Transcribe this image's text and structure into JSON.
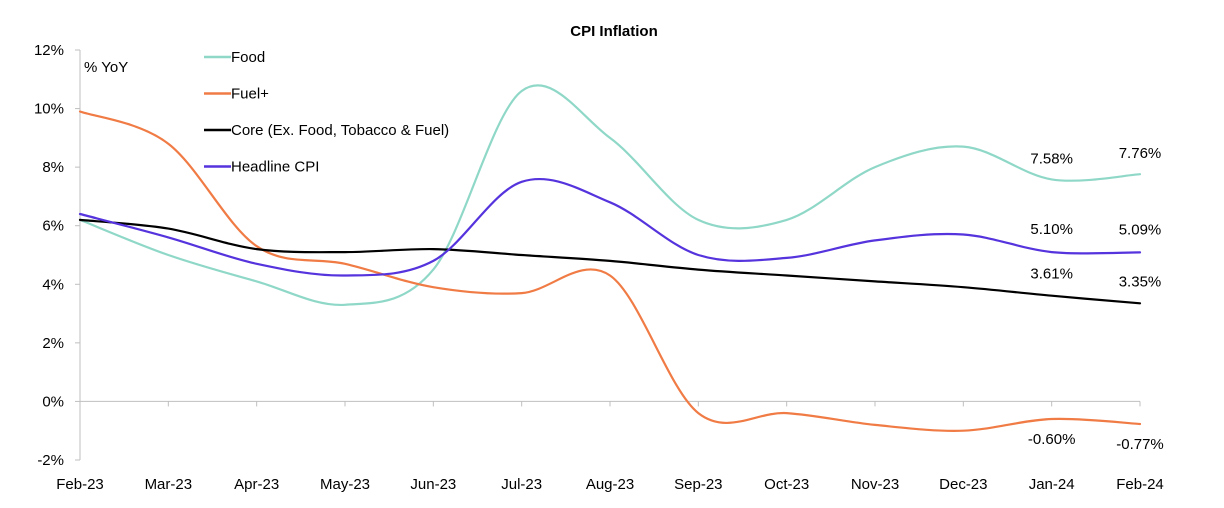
{
  "chart_data": {
    "type": "line",
    "title": "CPI Inflation",
    "unit_label": "% YoY",
    "categories": [
      "Feb-23",
      "Mar-23",
      "Apr-23",
      "May-23",
      "Jun-23",
      "Jul-23",
      "Aug-23",
      "Sep-23",
      "Oct-23",
      "Nov-23",
      "Dec-23",
      "Jan-24",
      "Feb-24"
    ],
    "ylim": [
      -2,
      12
    ],
    "yticks": [
      -2,
      0,
      2,
      4,
      6,
      8,
      10,
      12
    ],
    "ytick_labels": [
      "-2%",
      "0%",
      "2%",
      "4%",
      "6%",
      "8%",
      "10%",
      "12%"
    ],
    "grid": false,
    "legend_position": "top-left",
    "series": [
      {
        "name": "Food",
        "color": "#8fd8c8",
        "values": [
          6.2,
          5.0,
          4.1,
          3.3,
          4.5,
          10.6,
          9.0,
          6.2,
          6.2,
          8.0,
          8.7,
          7.58,
          7.76
        ]
      },
      {
        "name": "Fuel+",
        "color": "#f07b45",
        "values": [
          9.9,
          8.8,
          5.3,
          4.7,
          3.9,
          3.7,
          4.3,
          -0.4,
          -0.4,
          -0.8,
          -1.0,
          -0.6,
          -0.77
        ]
      },
      {
        "name": "Core (Ex. Food, Tobacco & Fuel)",
        "color": "#000000",
        "values": [
          6.2,
          5.9,
          5.2,
          5.1,
          5.2,
          5.0,
          4.8,
          4.5,
          4.3,
          4.1,
          3.9,
          3.61,
          3.35
        ]
      },
      {
        "name": "Headline CPI",
        "color": "#5533dd",
        "values": [
          6.4,
          5.6,
          4.7,
          4.3,
          4.8,
          7.5,
          6.8,
          5.0,
          4.9,
          5.5,
          5.7,
          5.1,
          5.09
        ]
      }
    ],
    "data_labels": [
      {
        "series": "Food",
        "category": "Jan-24",
        "text": "7.58%"
      },
      {
        "series": "Food",
        "category": "Feb-24",
        "text": "7.76%"
      },
      {
        "series": "Headline CPI",
        "category": "Jan-24",
        "text": "5.10%"
      },
      {
        "series": "Headline CPI",
        "category": "Feb-24",
        "text": "5.09%"
      },
      {
        "series": "Core (Ex. Food, Tobacco & Fuel)",
        "category": "Jan-24",
        "text": "3.61%"
      },
      {
        "series": "Core (Ex. Food, Tobacco & Fuel)",
        "category": "Feb-24",
        "text": "3.35%"
      },
      {
        "series": "Fuel+",
        "category": "Jan-24",
        "text": "-0.60%"
      },
      {
        "series": "Fuel+",
        "category": "Feb-24",
        "text": "-0.77%"
      }
    ]
  }
}
